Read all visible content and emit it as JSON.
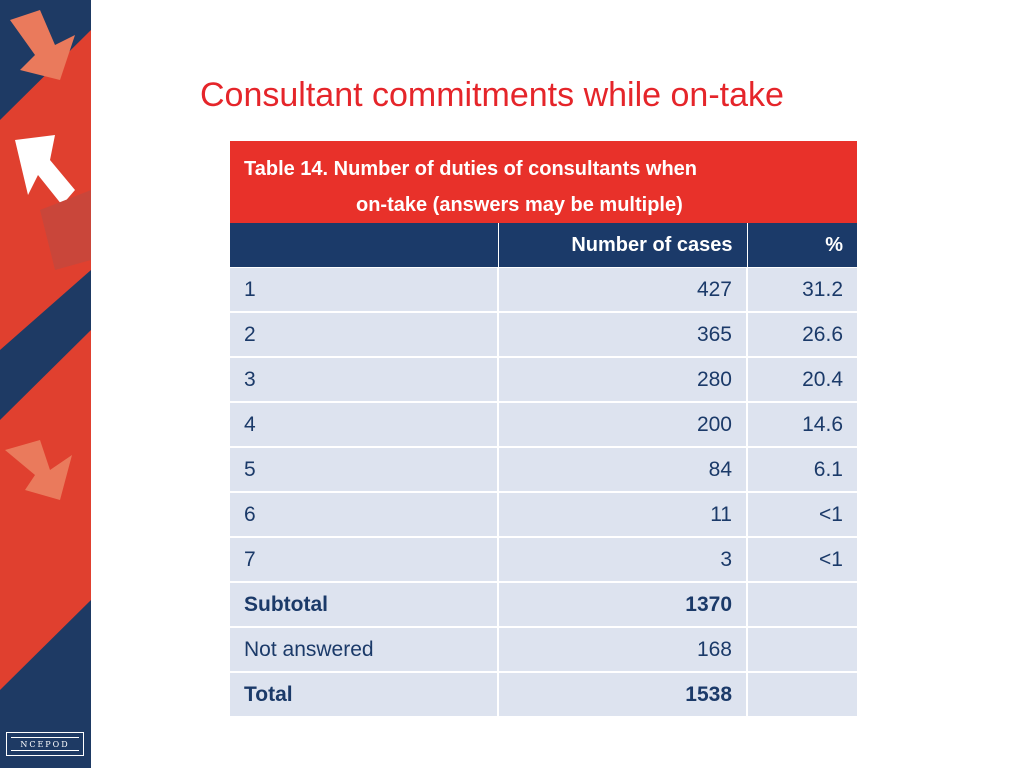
{
  "title": "Consultant commitments while on-take",
  "table": {
    "caption_line1": "Table 14. Number of duties of consultants when",
    "caption_line2": "on-take (answers may be multiple)",
    "headers": [
      "",
      "Number of cases",
      "%"
    ],
    "rows": [
      {
        "label": "1",
        "cases": "427",
        "pct": "31.2"
      },
      {
        "label": "2",
        "cases": "365",
        "pct": "26.6"
      },
      {
        "label": "3",
        "cases": "280",
        "pct": "20.4"
      },
      {
        "label": "4",
        "cases": "200",
        "pct": "14.6"
      },
      {
        "label": "5",
        "cases": "84",
        "pct": "6.1"
      },
      {
        "label": "6",
        "cases": "11",
        "pct": "<1"
      },
      {
        "label": "7",
        "cases": "3",
        "pct": "<1"
      },
      {
        "label": "Subtotal",
        "cases": "1370",
        "pct": ""
      },
      {
        "label": "Not answered",
        "cases": "168",
        "pct": ""
      },
      {
        "label": "Total",
        "cases": "1538",
        "pct": ""
      }
    ]
  },
  "logo_text": "NCEPOD",
  "colors": {
    "accent_red": "#e5252a",
    "navy": "#1b3a69",
    "cell_bg": "#dde3ef"
  }
}
